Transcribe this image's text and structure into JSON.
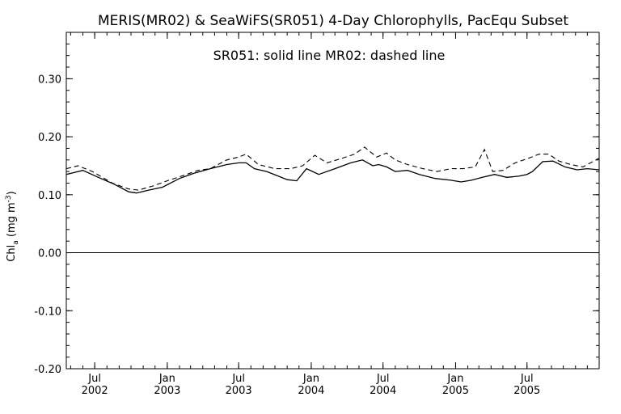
{
  "chart_data": {
    "type": "line",
    "title": "MERIS(MR02) & SeaWiFS(SR051) 4-Day Chlorophylls, PacEqu Subset",
    "annotation": "SR051: solid line    MR02: dashed line",
    "ylabel_main": "Chl",
    "ylabel_sub": "a",
    "ylabel_unit_open": " (mg m",
    "ylabel_unit_sup": "-3",
    "ylabel_unit_close": ")",
    "ylim": [
      -0.2,
      0.38
    ],
    "xlim": [
      "2002-04-20",
      "2005-12-31"
    ],
    "yticks": [
      {
        "value": -0.2,
        "label": "-0.20"
      },
      {
        "value": -0.1,
        "label": "-0.10"
      },
      {
        "value": 0.0,
        "label": "0.00"
      },
      {
        "value": 0.1,
        "label": "0.10"
      },
      {
        "value": 0.2,
        "label": "0.20"
      },
      {
        "value": 0.3,
        "label": "0.30"
      }
    ],
    "xticks": [
      {
        "date": "2002-07-01",
        "month": "Jul",
        "year": "2002"
      },
      {
        "date": "2003-01-01",
        "month": "Jan",
        "year": "2003"
      },
      {
        "date": "2003-07-01",
        "month": "Jul",
        "year": "2003"
      },
      {
        "date": "2004-01-01",
        "month": "Jan",
        "year": "2004"
      },
      {
        "date": "2004-07-01",
        "month": "Jul",
        "year": "2004"
      },
      {
        "date": "2005-01-01",
        "month": "Jan",
        "year": "2005"
      },
      {
        "date": "2005-07-01",
        "month": "Jul",
        "year": "2005"
      }
    ],
    "reference_line": 0.0,
    "series": [
      {
        "name": "SR051",
        "style": "solid",
        "x": [
          "2002-04-20",
          "2002-06-01",
          "2002-07-10",
          "2002-08-20",
          "2002-09-25",
          "2002-10-15",
          "2002-11-15",
          "2002-12-20",
          "2003-02-01",
          "2003-03-10",
          "2003-04-20",
          "2003-06-01",
          "2003-07-01",
          "2003-07-20",
          "2003-08-10",
          "2003-09-10",
          "2003-10-10",
          "2003-11-01",
          "2003-11-25",
          "2003-12-20",
          "2004-01-20",
          "2004-03-01",
          "2004-04-10",
          "2004-05-10",
          "2004-06-05",
          "2004-06-20",
          "2004-07-10",
          "2004-08-01",
          "2004-09-01",
          "2004-10-01",
          "2004-11-10",
          "2004-12-20",
          "2005-01-15",
          "2005-02-10",
          "2005-03-10",
          "2005-04-10",
          "2005-05-10",
          "2005-06-10",
          "2005-07-01",
          "2005-07-15",
          "2005-08-10",
          "2005-09-05",
          "2005-10-05",
          "2005-11-05",
          "2005-12-01",
          "2005-12-31"
        ],
        "values": [
          0.135,
          0.142,
          0.13,
          0.118,
          0.105,
          0.103,
          0.108,
          0.113,
          0.128,
          0.137,
          0.145,
          0.152,
          0.155,
          0.155,
          0.145,
          0.14,
          0.132,
          0.126,
          0.124,
          0.145,
          0.135,
          0.145,
          0.155,
          0.16,
          0.15,
          0.152,
          0.148,
          0.14,
          0.142,
          0.135,
          0.128,
          0.125,
          0.122,
          0.125,
          0.13,
          0.135,
          0.13,
          0.132,
          0.135,
          0.14,
          0.157,
          0.158,
          0.148,
          0.143,
          0.145,
          0.143
        ]
      },
      {
        "name": "MR02",
        "style": "dashed",
        "x": [
          "2002-04-20",
          "2002-05-20",
          "2002-06-25",
          "2002-08-15",
          "2002-09-25",
          "2002-10-20",
          "2002-11-25",
          "2003-01-05",
          "2003-02-10",
          "2003-03-20",
          "2003-04-20",
          "2003-06-01",
          "2003-07-01",
          "2003-07-20",
          "2003-08-20",
          "2003-10-01",
          "2003-11-10",
          "2003-12-10",
          "2004-01-10",
          "2004-02-10",
          "2004-03-15",
          "2004-04-20",
          "2004-05-15",
          "2004-06-15",
          "2004-07-10",
          "2004-08-01",
          "2004-09-01",
          "2004-10-10",
          "2004-11-15",
          "2004-12-20",
          "2005-01-20",
          "2005-02-20",
          "2005-03-15",
          "2005-04-05",
          "2005-05-01",
          "2005-06-01",
          "2005-07-01",
          "2005-08-01",
          "2005-08-25",
          "2005-09-20",
          "2005-10-20",
          "2005-11-20",
          "2005-12-31"
        ],
        "values": [
          0.145,
          0.15,
          0.14,
          0.12,
          0.11,
          0.108,
          0.115,
          0.125,
          0.133,
          0.142,
          0.145,
          0.16,
          0.165,
          0.17,
          0.152,
          0.145,
          0.145,
          0.15,
          0.168,
          0.155,
          0.162,
          0.17,
          0.182,
          0.165,
          0.172,
          0.16,
          0.152,
          0.145,
          0.14,
          0.145,
          0.145,
          0.148,
          0.178,
          0.14,
          0.142,
          0.155,
          0.162,
          0.17,
          0.17,
          0.158,
          0.152,
          0.148,
          0.163
        ]
      }
    ]
  }
}
